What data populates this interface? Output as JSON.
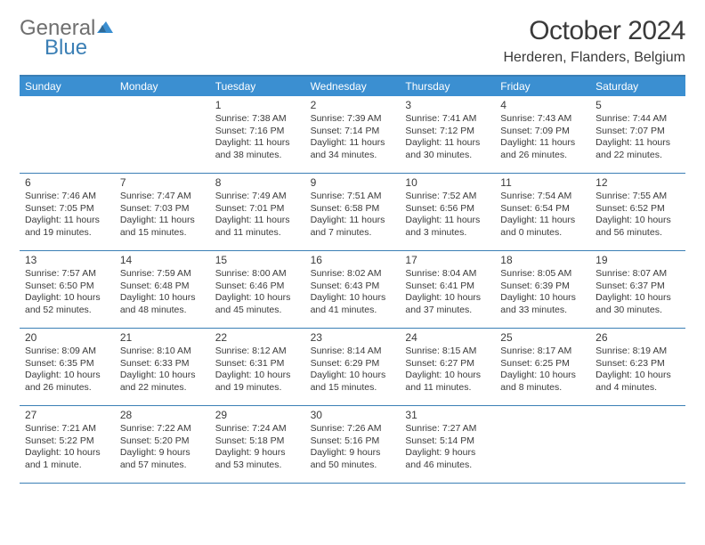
{
  "logo": {
    "general": "General",
    "blue": "Blue"
  },
  "title": "October 2024",
  "location": "Herderen, Flanders, Belgium",
  "colors": {
    "brand_blue": "#3b7fb5",
    "header_blue": "#3b8fd1",
    "text_gray": "#3a3a3a",
    "logo_gray": "#6f6f6f",
    "background": "#ffffff"
  },
  "weekdays": [
    "Sunday",
    "Monday",
    "Tuesday",
    "Wednesday",
    "Thursday",
    "Friday",
    "Saturday"
  ],
  "weeks": [
    [
      null,
      null,
      {
        "n": "1",
        "sr": "Sunrise: 7:38 AM",
        "ss": "Sunset: 7:16 PM",
        "d1": "Daylight: 11 hours",
        "d2": "and 38 minutes."
      },
      {
        "n": "2",
        "sr": "Sunrise: 7:39 AM",
        "ss": "Sunset: 7:14 PM",
        "d1": "Daylight: 11 hours",
        "d2": "and 34 minutes."
      },
      {
        "n": "3",
        "sr": "Sunrise: 7:41 AM",
        "ss": "Sunset: 7:12 PM",
        "d1": "Daylight: 11 hours",
        "d2": "and 30 minutes."
      },
      {
        "n": "4",
        "sr": "Sunrise: 7:43 AM",
        "ss": "Sunset: 7:09 PM",
        "d1": "Daylight: 11 hours",
        "d2": "and 26 minutes."
      },
      {
        "n": "5",
        "sr": "Sunrise: 7:44 AM",
        "ss": "Sunset: 7:07 PM",
        "d1": "Daylight: 11 hours",
        "d2": "and 22 minutes."
      }
    ],
    [
      {
        "n": "6",
        "sr": "Sunrise: 7:46 AM",
        "ss": "Sunset: 7:05 PM",
        "d1": "Daylight: 11 hours",
        "d2": "and 19 minutes."
      },
      {
        "n": "7",
        "sr": "Sunrise: 7:47 AM",
        "ss": "Sunset: 7:03 PM",
        "d1": "Daylight: 11 hours",
        "d2": "and 15 minutes."
      },
      {
        "n": "8",
        "sr": "Sunrise: 7:49 AM",
        "ss": "Sunset: 7:01 PM",
        "d1": "Daylight: 11 hours",
        "d2": "and 11 minutes."
      },
      {
        "n": "9",
        "sr": "Sunrise: 7:51 AM",
        "ss": "Sunset: 6:58 PM",
        "d1": "Daylight: 11 hours",
        "d2": "and 7 minutes."
      },
      {
        "n": "10",
        "sr": "Sunrise: 7:52 AM",
        "ss": "Sunset: 6:56 PM",
        "d1": "Daylight: 11 hours",
        "d2": "and 3 minutes."
      },
      {
        "n": "11",
        "sr": "Sunrise: 7:54 AM",
        "ss": "Sunset: 6:54 PM",
        "d1": "Daylight: 11 hours",
        "d2": "and 0 minutes."
      },
      {
        "n": "12",
        "sr": "Sunrise: 7:55 AM",
        "ss": "Sunset: 6:52 PM",
        "d1": "Daylight: 10 hours",
        "d2": "and 56 minutes."
      }
    ],
    [
      {
        "n": "13",
        "sr": "Sunrise: 7:57 AM",
        "ss": "Sunset: 6:50 PM",
        "d1": "Daylight: 10 hours",
        "d2": "and 52 minutes."
      },
      {
        "n": "14",
        "sr": "Sunrise: 7:59 AM",
        "ss": "Sunset: 6:48 PM",
        "d1": "Daylight: 10 hours",
        "d2": "and 48 minutes."
      },
      {
        "n": "15",
        "sr": "Sunrise: 8:00 AM",
        "ss": "Sunset: 6:46 PM",
        "d1": "Daylight: 10 hours",
        "d2": "and 45 minutes."
      },
      {
        "n": "16",
        "sr": "Sunrise: 8:02 AM",
        "ss": "Sunset: 6:43 PM",
        "d1": "Daylight: 10 hours",
        "d2": "and 41 minutes."
      },
      {
        "n": "17",
        "sr": "Sunrise: 8:04 AM",
        "ss": "Sunset: 6:41 PM",
        "d1": "Daylight: 10 hours",
        "d2": "and 37 minutes."
      },
      {
        "n": "18",
        "sr": "Sunrise: 8:05 AM",
        "ss": "Sunset: 6:39 PM",
        "d1": "Daylight: 10 hours",
        "d2": "and 33 minutes."
      },
      {
        "n": "19",
        "sr": "Sunrise: 8:07 AM",
        "ss": "Sunset: 6:37 PM",
        "d1": "Daylight: 10 hours",
        "d2": "and 30 minutes."
      }
    ],
    [
      {
        "n": "20",
        "sr": "Sunrise: 8:09 AM",
        "ss": "Sunset: 6:35 PM",
        "d1": "Daylight: 10 hours",
        "d2": "and 26 minutes."
      },
      {
        "n": "21",
        "sr": "Sunrise: 8:10 AM",
        "ss": "Sunset: 6:33 PM",
        "d1": "Daylight: 10 hours",
        "d2": "and 22 minutes."
      },
      {
        "n": "22",
        "sr": "Sunrise: 8:12 AM",
        "ss": "Sunset: 6:31 PM",
        "d1": "Daylight: 10 hours",
        "d2": "and 19 minutes."
      },
      {
        "n": "23",
        "sr": "Sunrise: 8:14 AM",
        "ss": "Sunset: 6:29 PM",
        "d1": "Daylight: 10 hours",
        "d2": "and 15 minutes."
      },
      {
        "n": "24",
        "sr": "Sunrise: 8:15 AM",
        "ss": "Sunset: 6:27 PM",
        "d1": "Daylight: 10 hours",
        "d2": "and 11 minutes."
      },
      {
        "n": "25",
        "sr": "Sunrise: 8:17 AM",
        "ss": "Sunset: 6:25 PM",
        "d1": "Daylight: 10 hours",
        "d2": "and 8 minutes."
      },
      {
        "n": "26",
        "sr": "Sunrise: 8:19 AM",
        "ss": "Sunset: 6:23 PM",
        "d1": "Daylight: 10 hours",
        "d2": "and 4 minutes."
      }
    ],
    [
      {
        "n": "27",
        "sr": "Sunrise: 7:21 AM",
        "ss": "Sunset: 5:22 PM",
        "d1": "Daylight: 10 hours",
        "d2": "and 1 minute."
      },
      {
        "n": "28",
        "sr": "Sunrise: 7:22 AM",
        "ss": "Sunset: 5:20 PM",
        "d1": "Daylight: 9 hours",
        "d2": "and 57 minutes."
      },
      {
        "n": "29",
        "sr": "Sunrise: 7:24 AM",
        "ss": "Sunset: 5:18 PM",
        "d1": "Daylight: 9 hours",
        "d2": "and 53 minutes."
      },
      {
        "n": "30",
        "sr": "Sunrise: 7:26 AM",
        "ss": "Sunset: 5:16 PM",
        "d1": "Daylight: 9 hours",
        "d2": "and 50 minutes."
      },
      {
        "n": "31",
        "sr": "Sunrise: 7:27 AM",
        "ss": "Sunset: 5:14 PM",
        "d1": "Daylight: 9 hours",
        "d2": "and 46 minutes."
      },
      null,
      null
    ]
  ]
}
